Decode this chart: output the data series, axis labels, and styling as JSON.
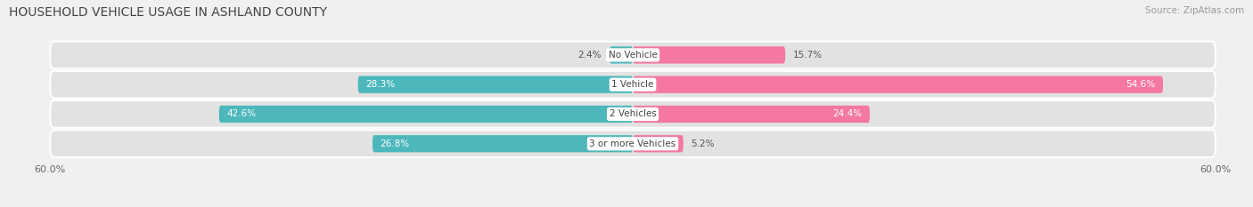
{
  "title": "HOUSEHOLD VEHICLE USAGE IN ASHLAND COUNTY",
  "source": "Source: ZipAtlas.com",
  "categories": [
    "No Vehicle",
    "1 Vehicle",
    "2 Vehicles",
    "3 or more Vehicles"
  ],
  "owner_values": [
    2.4,
    28.3,
    42.6,
    26.8
  ],
  "renter_values": [
    15.7,
    54.6,
    24.4,
    5.2
  ],
  "owner_color": "#4db8bc",
  "renter_color": "#f478a0",
  "axis_limit": 60.0,
  "bar_height": 0.58,
  "background_color": "#f0f0f0",
  "row_bg_color": "#e2e2e2",
  "title_fontsize": 10,
  "source_fontsize": 7.5,
  "category_fontsize": 7.5,
  "legend_fontsize": 8,
  "value_fontsize": 7.5
}
